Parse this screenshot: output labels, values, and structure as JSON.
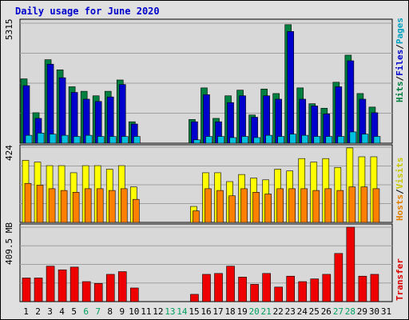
{
  "title": "Daily usage for June 2020",
  "panels": {
    "top": {
      "ymax_label": "5315",
      "legend": [
        {
          "text": "Hits",
          "color": "#008040"
        },
        {
          "text": "/",
          "color": "#000000"
        },
        {
          "text": "Files",
          "color": "#0000CC"
        },
        {
          "text": "/",
          "color": "#000000"
        },
        {
          "text": "Pages",
          "color": "#00A0C0"
        }
      ]
    },
    "middle": {
      "ymax_label": "424",
      "legend": [
        {
          "text": "Hosts",
          "color": "#E08000"
        },
        {
          "text": "/",
          "color": "#000000"
        },
        {
          "text": "Visits",
          "color": "#C8C800"
        }
      ]
    },
    "bottom": {
      "ymax_label": "409.5 MB",
      "legend": [
        {
          "text": "Transfer",
          "color": "#DD0000"
        }
      ]
    }
  },
  "colors": {
    "background": "#E0E0E0",
    "panel": "#D8D8D8",
    "hits": "#008040",
    "files": "#0000CC",
    "pages": "#00C0E0",
    "visits": "#FFFF00",
    "hosts": "#FF8000",
    "transfer": "#EE0000",
    "weekend_label": "#00A060",
    "weekday_label": "#000000"
  },
  "chart_data": {
    "type": "bar",
    "title": "Daily usage for June 2020",
    "categories": [
      "1",
      "2",
      "3",
      "4",
      "5",
      "6",
      "7",
      "8",
      "9",
      "10",
      "11",
      "12",
      "13",
      "14",
      "15",
      "16",
      "17",
      "18",
      "19",
      "20",
      "21",
      "22",
      "23",
      "24",
      "25",
      "26",
      "27",
      "28",
      "29",
      "30",
      "31"
    ],
    "weekend_days": [
      "6",
      "7",
      "13",
      "14",
      "20",
      "21",
      "27",
      "28"
    ],
    "panels": [
      {
        "name": "top",
        "ylim": [
          0,
          5315
        ],
        "grid": true,
        "series": [
          {
            "name": "Hits",
            "values": [
              2850,
              1350,
              3700,
              3250,
              2500,
              2300,
              2100,
              2300,
              2800,
              950,
              0,
              0,
              0,
              0,
              1050,
              2450,
              1100,
              2100,
              2350,
              1250,
              2400,
              2200,
              5250,
              2450,
              1750,
              1550,
              2700,
              3900,
              2200,
              1600
            ]
          },
          {
            "name": "Files",
            "values": [
              2550,
              1100,
              3500,
              2900,
              2250,
              1950,
              1850,
              2050,
              2600,
              850,
              0,
              0,
              0,
              0,
              950,
              2150,
              950,
              1800,
              2100,
              1150,
              2100,
              1950,
              4950,
              1950,
              1650,
              1300,
              2500,
              3650,
              1950,
              1350
            ]
          },
          {
            "name": "Pages",
            "values": [
              350,
              450,
              400,
              350,
              300,
              350,
              300,
              300,
              300,
              300,
              0,
              0,
              0,
              0,
              150,
              300,
              300,
              250,
              300,
              250,
              350,
              300,
              400,
              350,
              300,
              300,
              300,
              500,
              400,
              300
            ]
          }
        ]
      },
      {
        "name": "middle",
        "ylim": [
          0,
          424
        ],
        "grid": true,
        "series": [
          {
            "name": "Visits",
            "values": [
              350,
              340,
              320,
              320,
              280,
              320,
              320,
              300,
              320,
              200,
              0,
              0,
              0,
              0,
              90,
              280,
              280,
              230,
              270,
              250,
              240,
              300,
              290,
              360,
              340,
              360,
              310,
              420,
              370,
              370
            ]
          },
          {
            "name": "Hosts",
            "values": [
              220,
              210,
              190,
              180,
              170,
              190,
              190,
              180,
              190,
              130,
              0,
              0,
              0,
              0,
              65,
              190,
              180,
              150,
              190,
              170,
              160,
              190,
              190,
              190,
              180,
              190,
              180,
              200,
              200,
              190
            ]
          }
        ]
      },
      {
        "name": "bottom",
        "ylim": [
          0,
          409.5
        ],
        "unit": "MB",
        "grid": true,
        "series": [
          {
            "name": "Transfer",
            "values": [
              130,
              130,
              195,
              175,
              190,
              110,
              100,
              150,
              165,
              75,
              0,
              0,
              0,
              0,
              40,
              150,
              155,
              195,
              135,
              95,
              155,
              80,
              140,
              110,
              125,
              150,
              265,
              409.5,
              140,
              150
            ]
          }
        ]
      }
    ]
  }
}
